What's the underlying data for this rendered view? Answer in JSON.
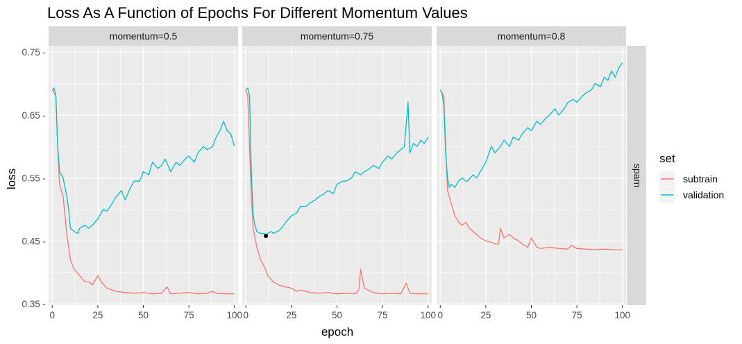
{
  "chart_data": {
    "type": "line",
    "title": "Loss As A Function of Epochs For Different Momentum Values",
    "xlabel": "epoch",
    "ylabel": "loss",
    "xlim": [
      -2,
      102
    ],
    "ylim": [
      0.348,
      0.76
    ],
    "x_ticks": [
      0,
      25,
      50,
      75,
      100
    ],
    "x_tick_labels": [
      "0",
      "25",
      "50",
      "75",
      "100"
    ],
    "y_ticks": [
      0.35,
      0.45,
      0.55,
      0.65,
      0.75
    ],
    "y_tick_labels": [
      "0.35 -",
      "0.45 -",
      "0.55 -",
      "0.65 -",
      "0.75 -"
    ],
    "grid": true,
    "facet_row_label": "spam",
    "legend": {
      "title": "set",
      "position": "right",
      "entries": [
        {
          "label": "subtrain",
          "color": "#F8766D"
        },
        {
          "label": "validation",
          "color": "#00BFC4"
        }
      ]
    },
    "colors": {
      "subtrain": "#F8766D",
      "validation": "#00BFC4",
      "panel_bg": "#EBEBEB",
      "strip_bg": "#D9D9D9",
      "grid": "#FFFFFF",
      "marker": "#000000"
    },
    "panels": [
      {
        "label": "momentum=0.5",
        "series": [
          {
            "name": "subtrain",
            "x": [
              0,
              2,
              3,
              4,
              6,
              8,
              10,
              12,
              15,
              18,
              20,
              22,
              24,
              25,
              27,
              30,
              35,
              40,
              45,
              50,
              55,
              60,
              63,
              65,
              70,
              75,
              80,
              85,
              88,
              90,
              95,
              100
            ],
            "y": [
              0.69,
              0.68,
              0.6,
              0.54,
              0.52,
              0.46,
              0.42,
              0.405,
              0.395,
              0.385,
              0.385,
              0.38,
              0.39,
              0.395,
              0.385,
              0.375,
              0.37,
              0.368,
              0.367,
              0.368,
              0.366,
              0.367,
              0.377,
              0.366,
              0.367,
              0.368,
              0.366,
              0.367,
              0.37,
              0.367,
              0.366,
              0.366
            ]
          },
          {
            "name": "validation",
            "x": [
              0,
              1,
              2,
              3,
              4,
              6,
              8,
              9,
              10,
              12,
              14,
              15,
              18,
              20,
              22,
              25,
              28,
              30,
              33,
              35,
              38,
              40,
              43,
              45,
              48,
              50,
              53,
              55,
              58,
              60,
              62,
              65,
              68,
              70,
              73,
              75,
              78,
              80,
              83,
              85,
              88,
              90,
              92,
              94,
              96,
              98,
              100
            ],
            "y": [
              0.69,
              0.693,
              0.68,
              0.6,
              0.56,
              0.55,
              0.52,
              0.5,
              0.47,
              0.465,
              0.462,
              0.47,
              0.475,
              0.47,
              0.475,
              0.485,
              0.5,
              0.497,
              0.51,
              0.52,
              0.53,
              0.515,
              0.535,
              0.545,
              0.545,
              0.56,
              0.555,
              0.575,
              0.565,
              0.57,
              0.58,
              0.56,
              0.575,
              0.57,
              0.58,
              0.585,
              0.575,
              0.59,
              0.6,
              0.595,
              0.6,
              0.615,
              0.625,
              0.64,
              0.625,
              0.62,
              0.6
            ]
          }
        ]
      },
      {
        "label": "momentum=0.75",
        "series": [
          {
            "name": "subtrain",
            "x": [
              0,
              1,
              2,
              3,
              4,
              6,
              8,
              10,
              12,
              15,
              18,
              20,
              25,
              28,
              30,
              33,
              35,
              40,
              45,
              50,
              55,
              60,
              62,
              63,
              65,
              70,
              75,
              80,
              85,
              88,
              90,
              95,
              100
            ],
            "y": [
              0.69,
              0.68,
              0.6,
              0.52,
              0.47,
              0.44,
              0.42,
              0.41,
              0.395,
              0.385,
              0.38,
              0.378,
              0.375,
              0.37,
              0.372,
              0.37,
              0.368,
              0.367,
              0.368,
              0.366,
              0.367,
              0.366,
              0.372,
              0.405,
              0.375,
              0.368,
              0.366,
              0.367,
              0.366,
              0.383,
              0.367,
              0.366,
              0.366
            ]
          },
          {
            "name": "validation",
            "x": [
              0,
              1,
              2,
              3,
              4,
              5,
              6,
              8,
              10,
              11,
              12,
              14,
              15,
              18,
              20,
              22,
              25,
              28,
              30,
              33,
              35,
              38,
              40,
              43,
              45,
              48,
              50,
              53,
              55,
              58,
              60,
              63,
              65,
              68,
              70,
              73,
              75,
              78,
              80,
              83,
              85,
              87,
              89,
              90,
              92,
              94,
              96,
              98,
              100
            ],
            "y": [
              0.69,
              0.693,
              0.68,
              0.56,
              0.49,
              0.475,
              0.465,
              0.462,
              0.462,
              0.458,
              0.462,
              0.465,
              0.462,
              0.466,
              0.472,
              0.48,
              0.49,
              0.495,
              0.505,
              0.505,
              0.51,
              0.515,
              0.52,
              0.525,
              0.53,
              0.525,
              0.54,
              0.545,
              0.545,
              0.55,
              0.56,
              0.555,
              0.56,
              0.565,
              0.57,
              0.565,
              0.575,
              0.585,
              0.58,
              0.59,
              0.595,
              0.6,
              0.67,
              0.59,
              0.605,
              0.6,
              0.61,
              0.605,
              0.615
            ]
          },
          {
            "name": "minimum",
            "x": [
              11
            ],
            "y": [
              0.458
            ]
          }
        ]
      },
      {
        "label": "momentum=0.8",
        "series": [
          {
            "name": "subtrain",
            "x": [
              0,
              2,
              3,
              4,
              6,
              8,
              10,
              12,
              14,
              16,
              18,
              20,
              22,
              25,
              28,
              30,
              32,
              33,
              35,
              38,
              40,
              43,
              45,
              48,
              50,
              53,
              55,
              60,
              65,
              70,
              72,
              75,
              80,
              85,
              90,
              95,
              100
            ],
            "y": [
              0.69,
              0.68,
              0.6,
              0.53,
              0.51,
              0.49,
              0.48,
              0.475,
              0.48,
              0.47,
              0.465,
              0.46,
              0.455,
              0.45,
              0.448,
              0.445,
              0.445,
              0.47,
              0.455,
              0.46,
              0.455,
              0.45,
              0.445,
              0.44,
              0.455,
              0.44,
              0.438,
              0.44,
              0.438,
              0.437,
              0.443,
              0.438,
              0.437,
              0.436,
              0.437,
              0.436,
              0.436
            ]
          },
          {
            "name": "validation",
            "x": [
              0,
              1,
              2,
              3,
              4,
              5,
              6,
              8,
              10,
              12,
              14,
              15,
              18,
              20,
              22,
              25,
              28,
              30,
              33,
              35,
              38,
              40,
              43,
              45,
              48,
              50,
              53,
              55,
              58,
              60,
              63,
              65,
              68,
              70,
              73,
              75,
              78,
              80,
              83,
              85,
              88,
              90,
              92,
              94,
              96,
              98,
              100
            ],
            "y": [
              0.69,
              0.685,
              0.665,
              0.59,
              0.55,
              0.535,
              0.54,
              0.535,
              0.545,
              0.55,
              0.545,
              0.545,
              0.555,
              0.55,
              0.56,
              0.575,
              0.6,
              0.59,
              0.6,
              0.61,
              0.6,
              0.615,
              0.61,
              0.62,
              0.63,
              0.625,
              0.64,
              0.635,
              0.645,
              0.65,
              0.66,
              0.65,
              0.66,
              0.67,
              0.675,
              0.67,
              0.68,
              0.685,
              0.69,
              0.7,
              0.695,
              0.71,
              0.705,
              0.72,
              0.71,
              0.725,
              0.733
            ]
          }
        ]
      }
    ]
  }
}
